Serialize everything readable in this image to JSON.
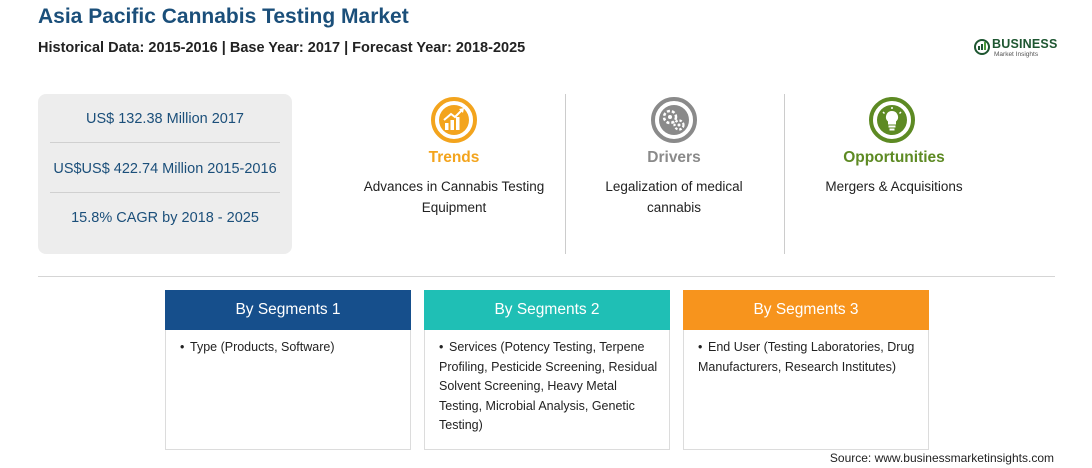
{
  "header": {
    "title": "Asia Pacific Cannabis Testing Market",
    "subtitle": "Historical Data: 2015-2016 | Base Year: 2017 | Forecast Year: 2018-2025"
  },
  "logo": {
    "main": "BUSINESS",
    "sub": "Market Insights"
  },
  "stats": [
    "US$ 132.38 Million 2017",
    "US$US$ 422.74 Million 2015-2016",
    "15.8% CAGR by 2018 - 2025"
  ],
  "highlights": [
    {
      "title": "Trends",
      "text": "Advances in Cannabis Testing Equipment",
      "color": "#f3a41d",
      "icon": "chart-up-icon"
    },
    {
      "title": "Drivers",
      "text": "Legalization of medical cannabis",
      "color": "#8a8a8a",
      "icon": "gears-icon"
    },
    {
      "title": "Opportunities",
      "text": "Mergers & Acquisitions",
      "color": "#5d8a23",
      "icon": "lightbulb-icon"
    }
  ],
  "segments": [
    {
      "title": "By Segments 1",
      "color": "#164f8c",
      "bullet": "•",
      "text": "Type (Products, Software)"
    },
    {
      "title": "By Segments 2",
      "color": "#1fbfb5",
      "bullet": "•",
      "text": "Services (Potency Testing, Terpene Profiling, Pesticide Screening, Residual Solvent Screening, Heavy Metal Testing, Microbial Analysis, Genetic Testing)"
    },
    {
      "title": "By Segments 3",
      "color": "#f7941d",
      "bullet": "•",
      "text": "End User (Testing Laboratories, Drug Manufacturers, Research Institutes)"
    }
  ],
  "source": "Source: www.businessmarketinsights.com"
}
